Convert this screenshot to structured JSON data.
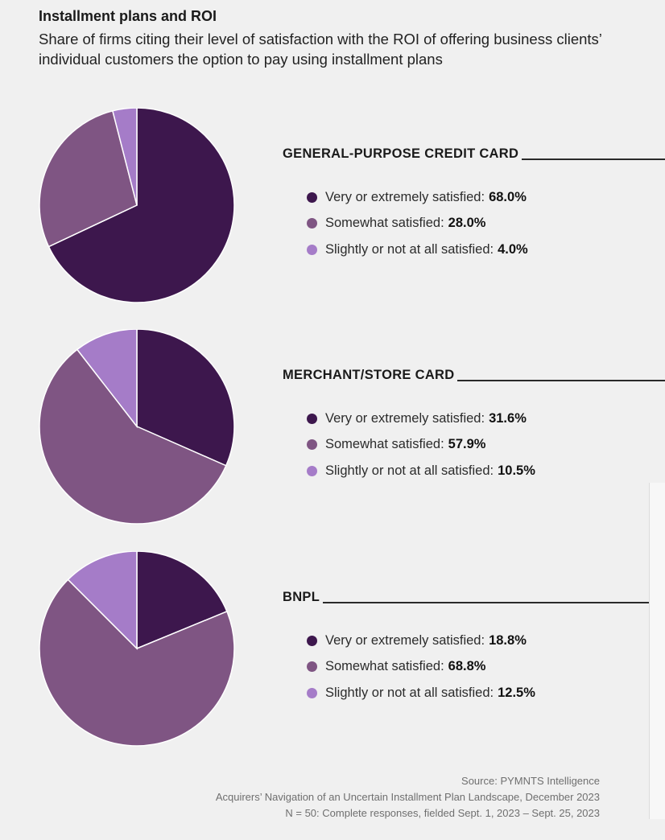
{
  "title": "Installment plans and ROI",
  "subtitle": "Share of firms citing their level of satisfaction with the ROI of offering business clients’ individual customers the option to pay using installment plans",
  "colors": {
    "very": "#3d174d",
    "somewhat": "#7f5583",
    "slightly": "#a57cc8"
  },
  "chart_data": [
    {
      "type": "pie",
      "title": "GENERAL-PURPOSE CREDIT CARD",
      "labels": [
        "Very or extremely satisfied:",
        "Somewhat satisfied:",
        "Slightly or not at all satisfied:"
      ],
      "values": [
        68.0,
        28.0,
        4.0
      ],
      "display": [
        "68.0%",
        "28.0%",
        "4.0%"
      ],
      "colors": [
        "#3d174d",
        "#7f5583",
        "#a57cc8"
      ],
      "legend": "right"
    },
    {
      "type": "pie",
      "title": "MERCHANT/STORE CARD",
      "labels": [
        "Very or extremely satisfied:",
        "Somewhat satisfied:",
        "Slightly or not at all satisfied:"
      ],
      "values": [
        31.6,
        57.9,
        10.5
      ],
      "display": [
        "31.6%",
        "57.9%",
        "10.5%"
      ],
      "colors": [
        "#3d174d",
        "#7f5583",
        "#a57cc8"
      ],
      "legend": "right"
    },
    {
      "type": "pie",
      "title": "BNPL",
      "labels": [
        "Very or extremely satisfied:",
        "Somewhat satisfied:",
        "Slightly or not at all satisfied:"
      ],
      "values": [
        18.8,
        68.8,
        12.5
      ],
      "display": [
        "18.8%",
        "68.8%",
        "12.5%"
      ],
      "colors": [
        "#3d174d",
        "#7f5583",
        "#a57cc8"
      ],
      "legend": "right"
    }
  ],
  "source": {
    "line1": "Source: PYMNTS Intelligence",
    "line2": "Acquirers’ Navigation of an Uncertain Installment Plan Landscape, December 2023",
    "line3": "N = 50: Complete responses, fielded Sept. 1, 2023 – Sept. 25, 2023"
  }
}
